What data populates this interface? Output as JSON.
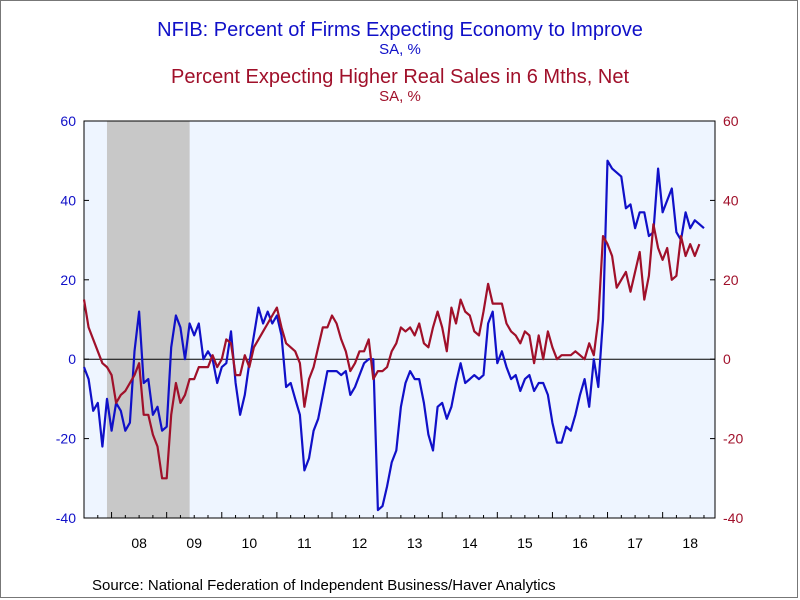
{
  "titles": {
    "series1_title": "NFIB: Percent of Firms Expecting Economy to Improve",
    "series1_units": "SA, %",
    "series2_title": "Percent Expecting Higher Real Sales in 6 Mths, Net",
    "series2_units": "SA, %"
  },
  "source": "Source:  National Federation of Independent Business/Haver Analytics",
  "colors": {
    "series1": "#1010c8",
    "series2": "#a0102a",
    "plot_background": "#eef5ff",
    "recession_shade": "#c8c8c8",
    "zero_line": "#000000"
  },
  "chart_data": {
    "type": "line",
    "xlim": [
      2007.5,
      2018.95
    ],
    "ylim_left": [
      -40,
      60
    ],
    "ylim_right": [
      -40,
      60
    ],
    "left_ticks": [
      "60",
      "40",
      "20",
      "0",
      "-20",
      "-40"
    ],
    "right_ticks": [
      "60",
      "40",
      "20",
      "0",
      "-20",
      "-40"
    ],
    "x_tick_labels": [
      "08",
      "09",
      "10",
      "11",
      "12",
      "13",
      "14",
      "15",
      "16",
      "17",
      "18"
    ],
    "recession": [
      2007.917,
      2009.417
    ],
    "grid": false,
    "legend": "none",
    "series": [
      {
        "axis": "left",
        "color": "#1010c8",
        "points": [
          [
            2007.5,
            -2
          ],
          [
            2007.583,
            -5
          ],
          [
            2007.667,
            -13
          ],
          [
            2007.75,
            -11
          ],
          [
            2007.833,
            -22
          ],
          [
            2007.917,
            -10
          ],
          [
            2008,
            -18
          ],
          [
            2008.083,
            -11
          ],
          [
            2008.167,
            -13
          ],
          [
            2008.25,
            -18
          ],
          [
            2008.333,
            -16
          ],
          [
            2008.417,
            2
          ],
          [
            2008.5,
            12
          ],
          [
            2008.583,
            -6
          ],
          [
            2008.667,
            -5
          ],
          [
            2008.75,
            -14
          ],
          [
            2008.833,
            -12
          ],
          [
            2008.917,
            -18
          ],
          [
            2009,
            -17
          ],
          [
            2009.083,
            3
          ],
          [
            2009.167,
            11
          ],
          [
            2009.25,
            8
          ],
          [
            2009.333,
            0
          ],
          [
            2009.417,
            9
          ],
          [
            2009.5,
            6
          ],
          [
            2009.583,
            9
          ],
          [
            2009.667,
            0
          ],
          [
            2009.75,
            2
          ],
          [
            2009.833,
            0
          ],
          [
            2009.917,
            -6
          ],
          [
            2010,
            -2
          ],
          [
            2010.083,
            -1
          ],
          [
            2010.167,
            7
          ],
          [
            2010.25,
            -6
          ],
          [
            2010.333,
            -14
          ],
          [
            2010.417,
            -9
          ],
          [
            2010.5,
            -1
          ],
          [
            2010.583,
            6
          ],
          [
            2010.667,
            13
          ],
          [
            2010.75,
            9
          ],
          [
            2010.833,
            12
          ],
          [
            2010.917,
            9
          ],
          [
            2011,
            11
          ],
          [
            2011.083,
            6
          ],
          [
            2011.167,
            -7
          ],
          [
            2011.25,
            -6
          ],
          [
            2011.333,
            -10
          ],
          [
            2011.417,
            -14
          ],
          [
            2011.5,
            -28
          ],
          [
            2011.583,
            -25
          ],
          [
            2011.667,
            -18
          ],
          [
            2011.75,
            -15
          ],
          [
            2011.833,
            -9
          ],
          [
            2011.917,
            -3
          ],
          [
            2012,
            -3
          ],
          [
            2012.083,
            -3
          ],
          [
            2012.167,
            -4
          ],
          [
            2012.25,
            -3
          ],
          [
            2012.333,
            -9
          ],
          [
            2012.417,
            -7
          ],
          [
            2012.5,
            -4
          ],
          [
            2012.583,
            -1
          ],
          [
            2012.667,
            0
          ],
          [
            2012.75,
            0
          ],
          [
            2012.833,
            -38
          ],
          [
            2012.917,
            -37
          ],
          [
            2013,
            -32
          ],
          [
            2013.083,
            -26
          ],
          [
            2013.167,
            -23
          ],
          [
            2013.25,
            -12
          ],
          [
            2013.333,
            -6
          ],
          [
            2013.417,
            -3
          ],
          [
            2013.5,
            -5
          ],
          [
            2013.583,
            -5
          ],
          [
            2013.667,
            -11
          ],
          [
            2013.75,
            -19
          ],
          [
            2013.833,
            -23
          ],
          [
            2013.917,
            -12
          ],
          [
            2014,
            -11
          ],
          [
            2014.083,
            -15
          ],
          [
            2014.167,
            -12
          ],
          [
            2014.25,
            -6
          ],
          [
            2014.333,
            -1
          ],
          [
            2014.417,
            -6
          ],
          [
            2014.5,
            -5
          ],
          [
            2014.583,
            -4
          ],
          [
            2014.667,
            -5
          ],
          [
            2014.75,
            -4
          ],
          [
            2014.833,
            9
          ],
          [
            2014.917,
            12
          ],
          [
            2015,
            -1
          ],
          [
            2015.083,
            2
          ],
          [
            2015.167,
            -2
          ],
          [
            2015.25,
            -5
          ],
          [
            2015.333,
            -4
          ],
          [
            2015.417,
            -8
          ],
          [
            2015.5,
            -5
          ],
          [
            2015.583,
            -4
          ],
          [
            2015.667,
            -8
          ],
          [
            2015.75,
            -6
          ],
          [
            2015.833,
            -6
          ],
          [
            2015.917,
            -9
          ],
          [
            2016,
            -16
          ],
          [
            2016.083,
            -21
          ],
          [
            2016.167,
            -21
          ],
          [
            2016.25,
            -17
          ],
          [
            2016.333,
            -18
          ],
          [
            2016.417,
            -14
          ],
          [
            2016.5,
            -9
          ],
          [
            2016.583,
            -5
          ],
          [
            2016.667,
            -12
          ],
          [
            2016.75,
            0
          ],
          [
            2016.833,
            -7
          ],
          [
            2016.917,
            10
          ],
          [
            2017,
            50
          ],
          [
            2017.083,
            48
          ],
          [
            2017.167,
            47
          ],
          [
            2017.25,
            46
          ],
          [
            2017.333,
            38
          ],
          [
            2017.417,
            39
          ],
          [
            2017.5,
            33
          ],
          [
            2017.583,
            37
          ],
          [
            2017.667,
            37
          ],
          [
            2017.75,
            31
          ],
          [
            2017.833,
            32
          ],
          [
            2017.917,
            48
          ],
          [
            2018,
            37
          ],
          [
            2018.083,
            40
          ],
          [
            2018.167,
            43
          ],
          [
            2018.25,
            32
          ],
          [
            2018.333,
            30
          ],
          [
            2018.417,
            37
          ],
          [
            2018.5,
            33
          ],
          [
            2018.583,
            35
          ],
          [
            2018.667,
            34
          ],
          [
            2018.75,
            33
          ]
        ]
      },
      {
        "axis": "right",
        "color": "#a0102a",
        "points": [
          [
            2007.5,
            15
          ],
          [
            2007.583,
            8
          ],
          [
            2007.667,
            5
          ],
          [
            2007.75,
            2
          ],
          [
            2007.833,
            -1
          ],
          [
            2007.917,
            -2
          ],
          [
            2008,
            -4
          ],
          [
            2008.083,
            -11
          ],
          [
            2008.167,
            -9
          ],
          [
            2008.25,
            -8
          ],
          [
            2008.333,
            -6
          ],
          [
            2008.417,
            -4
          ],
          [
            2008.5,
            -1
          ],
          [
            2008.583,
            -14
          ],
          [
            2008.667,
            -14
          ],
          [
            2008.75,
            -19
          ],
          [
            2008.833,
            -22
          ],
          [
            2008.917,
            -30
          ],
          [
            2009,
            -30
          ],
          [
            2009.083,
            -14
          ],
          [
            2009.167,
            -6
          ],
          [
            2009.25,
            -11
          ],
          [
            2009.333,
            -9
          ],
          [
            2009.417,
            -5
          ],
          [
            2009.5,
            -5
          ],
          [
            2009.583,
            -2
          ],
          [
            2009.667,
            -2
          ],
          [
            2009.75,
            -2
          ],
          [
            2009.833,
            1
          ],
          [
            2009.917,
            -2
          ],
          [
            2010,
            0
          ],
          [
            2010.083,
            5
          ],
          [
            2010.167,
            4
          ],
          [
            2010.25,
            -4
          ],
          [
            2010.333,
            -4
          ],
          [
            2010.417,
            1
          ],
          [
            2010.5,
            -2
          ],
          [
            2010.583,
            3
          ],
          [
            2010.667,
            5
          ],
          [
            2010.75,
            7
          ],
          [
            2010.833,
            9
          ],
          [
            2010.917,
            11
          ],
          [
            2011,
            13
          ],
          [
            2011.083,
            8
          ],
          [
            2011.167,
            4
          ],
          [
            2011.25,
            3
          ],
          [
            2011.333,
            2
          ],
          [
            2011.417,
            -1
          ],
          [
            2011.5,
            -12
          ],
          [
            2011.583,
            -5
          ],
          [
            2011.667,
            -2
          ],
          [
            2011.75,
            3
          ],
          [
            2011.833,
            8
          ],
          [
            2011.917,
            8
          ],
          [
            2012,
            11
          ],
          [
            2012.083,
            9
          ],
          [
            2012.167,
            5
          ],
          [
            2012.25,
            2
          ],
          [
            2012.333,
            -3
          ],
          [
            2012.417,
            -1
          ],
          [
            2012.5,
            2
          ],
          [
            2012.583,
            2
          ],
          [
            2012.667,
            5
          ],
          [
            2012.75,
            -5
          ],
          [
            2012.833,
            -3
          ],
          [
            2012.917,
            -3
          ],
          [
            2013,
            -2
          ],
          [
            2013.083,
            2
          ],
          [
            2013.167,
            4
          ],
          [
            2013.25,
            8
          ],
          [
            2013.333,
            7
          ],
          [
            2013.417,
            8
          ],
          [
            2013.5,
            6
          ],
          [
            2013.583,
            9
          ],
          [
            2013.667,
            4
          ],
          [
            2013.75,
            3
          ],
          [
            2013.833,
            8
          ],
          [
            2013.917,
            12
          ],
          [
            2014,
            8
          ],
          [
            2014.083,
            2
          ],
          [
            2014.167,
            13
          ],
          [
            2014.25,
            9
          ],
          [
            2014.333,
            15
          ],
          [
            2014.417,
            12
          ],
          [
            2014.5,
            11
          ],
          [
            2014.583,
            7
          ],
          [
            2014.667,
            6
          ],
          [
            2014.75,
            12
          ],
          [
            2014.833,
            19
          ],
          [
            2014.917,
            14
          ],
          [
            2015,
            14
          ],
          [
            2015.083,
            14
          ],
          [
            2015.167,
            9
          ],
          [
            2015.25,
            7
          ],
          [
            2015.333,
            6
          ],
          [
            2015.417,
            4
          ],
          [
            2015.5,
            7
          ],
          [
            2015.583,
            6
          ],
          [
            2015.667,
            -1
          ],
          [
            2015.75,
            6
          ],
          [
            2015.833,
            0
          ],
          [
            2015.917,
            7
          ],
          [
            2016,
            3
          ],
          [
            2016.083,
            0
          ],
          [
            2016.167,
            1
          ],
          [
            2016.25,
            1
          ],
          [
            2016.333,
            1
          ],
          [
            2016.417,
            2
          ],
          [
            2016.5,
            1
          ],
          [
            2016.583,
            0
          ],
          [
            2016.667,
            4
          ],
          [
            2016.75,
            1
          ],
          [
            2016.833,
            10
          ],
          [
            2016.917,
            31
          ],
          [
            2017,
            29
          ],
          [
            2017.083,
            26
          ],
          [
            2017.167,
            18
          ],
          [
            2017.25,
            20
          ],
          [
            2017.333,
            22
          ],
          [
            2017.417,
            17
          ],
          [
            2017.5,
            22
          ],
          [
            2017.583,
            27
          ],
          [
            2017.667,
            15
          ],
          [
            2017.75,
            21
          ],
          [
            2017.833,
            34
          ],
          [
            2017.917,
            28
          ],
          [
            2018,
            25
          ],
          [
            2018.083,
            28
          ],
          [
            2018.167,
            20
          ],
          [
            2018.25,
            21
          ],
          [
            2018.333,
            31
          ],
          [
            2018.417,
            26
          ],
          [
            2018.5,
            29
          ],
          [
            2018.583,
            26
          ],
          [
            2018.667,
            29
          ]
        ]
      }
    ]
  }
}
